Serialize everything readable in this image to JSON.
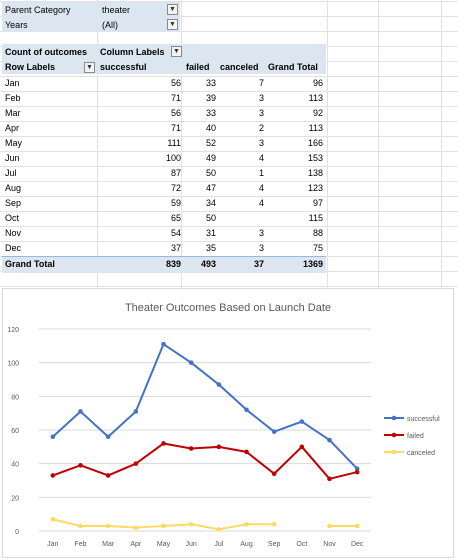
{
  "filters": [
    {
      "label": "Parent Category",
      "value": "theater"
    },
    {
      "label": "Years",
      "value": "(All)"
    }
  ],
  "pivot": {
    "count_label": "Count of outcomes",
    "column_labels": "Column Labels",
    "row_labels": "Row Labels",
    "columns": [
      "successful",
      "failed",
      "canceled",
      "Grand Total"
    ],
    "rows": [
      {
        "label": "Jan",
        "values": [
          "56",
          "33",
          "7",
          "96"
        ]
      },
      {
        "label": "Feb",
        "values": [
          "71",
          "39",
          "3",
          "113"
        ]
      },
      {
        "label": "Mar",
        "values": [
          "56",
          "33",
          "3",
          "92"
        ]
      },
      {
        "label": "Apr",
        "values": [
          "71",
          "40",
          "2",
          "113"
        ]
      },
      {
        "label": "May",
        "values": [
          "111",
          "52",
          "3",
          "166"
        ]
      },
      {
        "label": "Jun",
        "values": [
          "100",
          "49",
          "4",
          "153"
        ]
      },
      {
        "label": "Jul",
        "values": [
          "87",
          "50",
          "1",
          "138"
        ]
      },
      {
        "label": "Aug",
        "values": [
          "72",
          "47",
          "4",
          "123"
        ]
      },
      {
        "label": "Sep",
        "values": [
          "59",
          "34",
          "4",
          "97"
        ]
      },
      {
        "label": "Oct",
        "values": [
          "65",
          "50",
          "",
          "115"
        ]
      },
      {
        "label": "Nov",
        "values": [
          "54",
          "31",
          "3",
          "88"
        ]
      },
      {
        "label": "Dec",
        "values": [
          "37",
          "35",
          "3",
          "75"
        ]
      }
    ],
    "grand_total": {
      "label": "Grand Total",
      "values": [
        "839",
        "493",
        "37",
        "1369"
      ]
    }
  },
  "chart_data": {
    "type": "line",
    "title": "Theater Outcomes Based on Launch Date",
    "categories": [
      "Jan",
      "Feb",
      "Mar",
      "Apr",
      "May",
      "Jun",
      "Jul",
      "Aug",
      "Sep",
      "Oct",
      "Nov",
      "Dec"
    ],
    "ylim": [
      0,
      120
    ],
    "yticks": [
      "0",
      "20",
      "40",
      "60",
      "80",
      "100",
      "120"
    ],
    "grid": true,
    "legend": "right",
    "series": [
      {
        "name": "successful",
        "color": "#4472c4",
        "values": [
          56,
          71,
          56,
          71,
          111,
          100,
          87,
          72,
          59,
          65,
          54,
          37
        ]
      },
      {
        "name": "failed",
        "color": "#c00000",
        "values": [
          33,
          39,
          33,
          40,
          52,
          49,
          50,
          47,
          34,
          50,
          31,
          35
        ]
      },
      {
        "name": "canceled",
        "color": "#ffd966",
        "values": [
          7,
          3,
          3,
          2,
          3,
          4,
          1,
          4,
          4,
          null,
          3,
          3
        ]
      }
    ]
  }
}
